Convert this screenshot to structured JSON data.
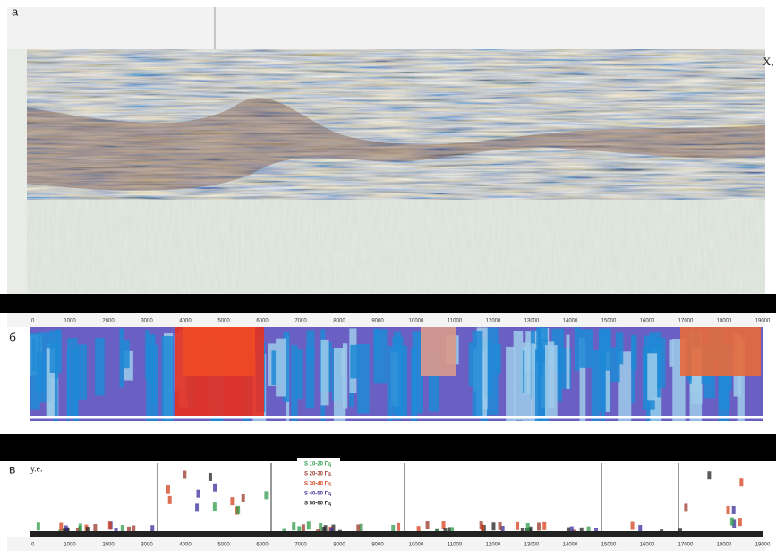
{
  "panels": [
    {
      "label": "а",
      "side_label": "Х,"
    },
    {
      "label": "б",
      "ticks": [
        "0",
        "1000",
        "2000",
        "3000",
        "4000",
        "5000",
        "6000",
        "7000",
        "8000",
        "9000",
        "10000",
        "11000",
        "12000",
        "13000",
        "14000",
        "15000",
        "16000",
        "17000",
        "18000",
        "19000"
      ]
    },
    {
      "label": "в",
      "unit_label": "у.е.",
      "ticks": [
        "0",
        "1000",
        "2000",
        "3000",
        "4000",
        "5000",
        "6000",
        "7000",
        "8000",
        "9000",
        "10000",
        "11000",
        "12000",
        "13000",
        "14000",
        "15000",
        "16000",
        "17000",
        "18000",
        "19000"
      ],
      "legend": [
        {
          "text": "S 10-20 Гц",
          "color": "#2e9b4a"
        },
        {
          "text": "S 20-30 Гц",
          "color": "#9b3a2a"
        },
        {
          "text": "S 30-40 Гц",
          "color": "#d4401e"
        },
        {
          "text": "S 40-50 Гц",
          "color": "#3a2e9b"
        },
        {
          "text": "S 50-60 Гц",
          "color": "#222222"
        }
      ]
    }
  ]
}
